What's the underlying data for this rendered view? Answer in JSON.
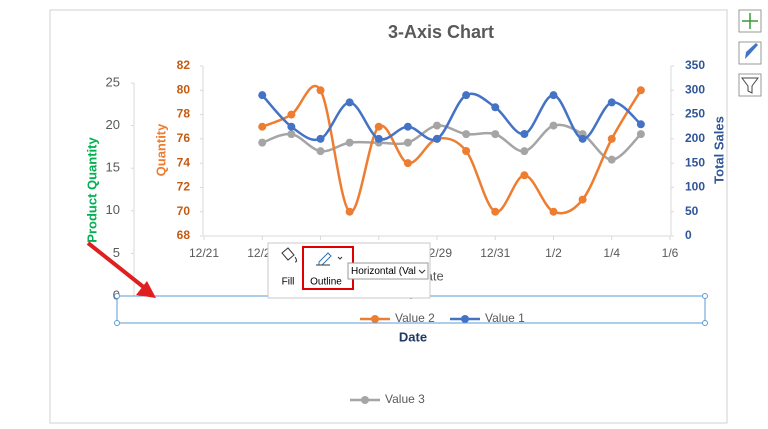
{
  "chart_data": {
    "type": "line",
    "title": "3-Axis Chart",
    "x": [
      "12/23",
      "12/24",
      "12/25",
      "12/26",
      "12/27",
      "12/28",
      "12/29",
      "12/30",
      "12/31",
      "1/1",
      "1/2",
      "1/3",
      "1/4",
      "1/5"
    ],
    "xlim": [
      "12/21",
      "1/6"
    ],
    "xticks": [
      "12/21",
      "12/23",
      "12/25",
      "12/27",
      "12/29",
      "12/31",
      "1/2",
      "1/4",
      "1/6"
    ],
    "xlabel": "Date",
    "selected_title": "Date",
    "ylabel": "Quantity",
    "ylim": [
      68,
      82
    ],
    "yticks": [
      68,
      70,
      72,
      74,
      76,
      78,
      80,
      82
    ],
    "y2label": "Total Sales",
    "y2lim": [
      0,
      350
    ],
    "y2ticks": [
      0,
      50,
      100,
      150,
      200,
      250,
      300,
      350
    ],
    "y3label": "Product Quantity",
    "y3lim": [
      0,
      25
    ],
    "y3ticks": [
      0,
      5,
      10,
      15,
      20,
      25
    ],
    "grid": false,
    "series": [
      {
        "name": "Value 2",
        "color": "#ed7d31",
        "axis": "y",
        "values": [
          77,
          78,
          80,
          70,
          77,
          74,
          76,
          75,
          70,
          73,
          70,
          71,
          76,
          80
        ]
      },
      {
        "name": "Value 1",
        "color": "#4472c4",
        "axis": "y2",
        "values": [
          290,
          225,
          200,
          275,
          200,
          225,
          200,
          290,
          265,
          210,
          290,
          200,
          275,
          230
        ]
      },
      {
        "name": "Value 3",
        "color": "#a5a5a5",
        "axis": "y3",
        "values": [
          18,
          19,
          17,
          18,
          18,
          18,
          20,
          19,
          19,
          17,
          20,
          19,
          16,
          19
        ]
      }
    ]
  },
  "toolbar": {
    "fill": "Fill",
    "outline": "Outline",
    "dropdown": "Horizontal (Val"
  }
}
